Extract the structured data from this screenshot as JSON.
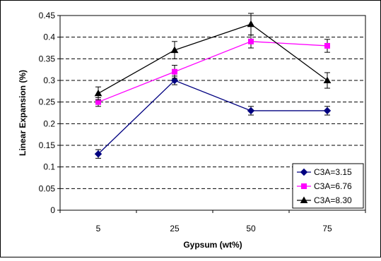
{
  "chart_data": {
    "type": "line",
    "title": "",
    "xlabel": "Gypsum (wt%)",
    "ylabel": "Linear Expansion (%)",
    "categories": [
      "5",
      "25",
      "50",
      "75"
    ],
    "ylim": [
      0,
      0.45
    ],
    "yticks": [
      "0",
      "0.05",
      "0.1",
      "0.15",
      "0.2",
      "0.25",
      "0.3",
      "0.35",
      "0.4",
      "0.45"
    ],
    "grid": "horizontal dashed",
    "legend_position": "bottom-right",
    "series": [
      {
        "name": "C3A=3.15",
        "values": [
          0.13,
          0.3,
          0.23,
          0.23
        ],
        "errors": [
          0.01,
          0.01,
          0.01,
          0.01
        ],
        "color": "#000080",
        "marker": "diamond"
      },
      {
        "name": "C3A=6.76",
        "values": [
          0.25,
          0.32,
          0.39,
          0.38
        ],
        "errors": [
          0.01,
          0.015,
          0.015,
          0.015
        ],
        "color": "#FF00FF",
        "marker": "square"
      },
      {
        "name": "C3A=8.30",
        "values": [
          0.27,
          0.37,
          0.43,
          0.3
        ],
        "errors": [
          0.015,
          0.02,
          0.025,
          0.018
        ],
        "color": "#000000",
        "marker": "triangle"
      }
    ]
  }
}
